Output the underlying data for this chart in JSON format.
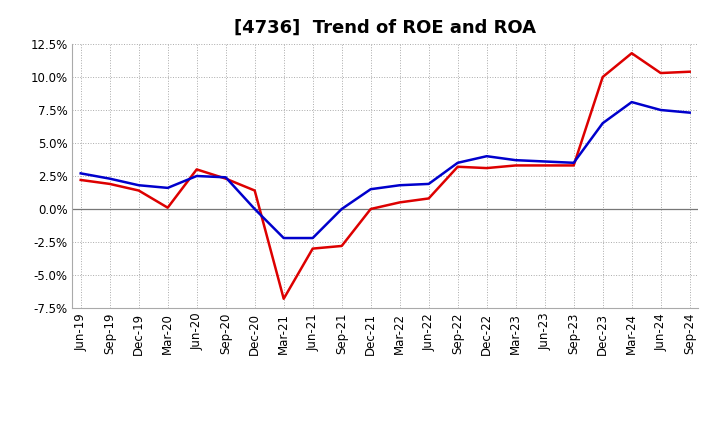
{
  "title": "[4736]  Trend of ROE and ROA",
  "x_labels": [
    "Jun-19",
    "Sep-19",
    "Dec-19",
    "Mar-20",
    "Jun-20",
    "Sep-20",
    "Dec-20",
    "Mar-21",
    "Jun-21",
    "Sep-21",
    "Dec-21",
    "Mar-22",
    "Jun-22",
    "Sep-22",
    "Dec-22",
    "Mar-23",
    "Jun-23",
    "Sep-23",
    "Dec-23",
    "Mar-24",
    "Jun-24",
    "Sep-24"
  ],
  "roe_vals": [
    2.2,
    1.9,
    1.4,
    0.1,
    3.0,
    2.3,
    1.4,
    -6.8,
    -3.0,
    -2.8,
    0.0,
    0.5,
    0.8,
    3.2,
    3.1,
    3.3,
    3.3,
    3.3,
    10.0,
    11.8,
    10.3,
    10.4
  ],
  "roa_vals": [
    2.7,
    2.3,
    1.8,
    1.6,
    2.5,
    2.4,
    0.0,
    -2.2,
    -2.2,
    0.0,
    1.5,
    1.8,
    1.9,
    3.5,
    4.0,
    3.7,
    3.6,
    3.5,
    6.5,
    8.1,
    7.5,
    7.3
  ],
  "roe_color": "#dd0000",
  "roa_color": "#0000cc",
  "ylim": [
    -7.5,
    12.5
  ],
  "yticks": [
    -7.5,
    -5.0,
    -2.5,
    0.0,
    2.5,
    5.0,
    7.5,
    10.0,
    12.5
  ],
  "background_color": "#ffffff",
  "grid_color": "#aaaaaa",
  "title_fontsize": 13,
  "linewidth": 1.8
}
